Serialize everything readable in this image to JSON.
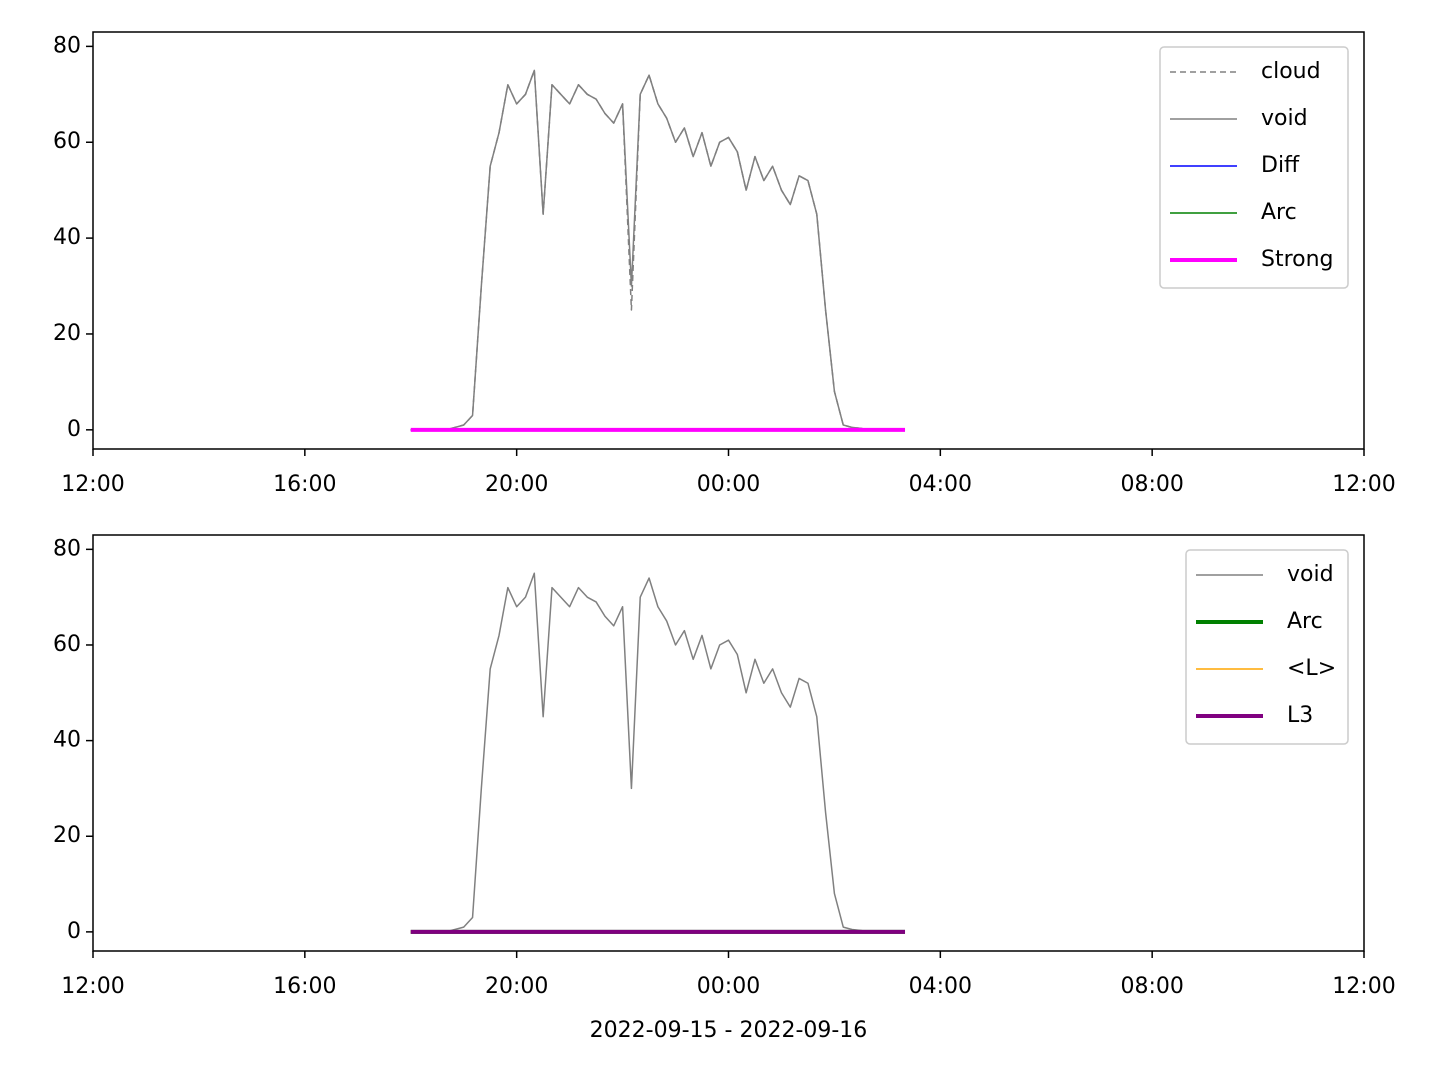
{
  "chart_data": [
    {
      "type": "line",
      "x": [
        6,
        6.167,
        6.333,
        6.5,
        6.667,
        6.833,
        7,
        7.167,
        7.333,
        7.5,
        7.667,
        7.833,
        8,
        8.167,
        8.333,
        8.5,
        8.667,
        8.833,
        9,
        9.167,
        9.333,
        9.5,
        9.667,
        9.833,
        10,
        10.167,
        10.333,
        10.5,
        10.667,
        10.833,
        11,
        11.167,
        11.333,
        11.5,
        11.667,
        11.833,
        12,
        12.167,
        12.333,
        12.5,
        12.667,
        12.833,
        13,
        13.167,
        13.333,
        13.5,
        13.667,
        13.833,
        14,
        14.167,
        14.333,
        14.5,
        14.667,
        14.833,
        15,
        15.167,
        15.333
      ],
      "series": [
        {
          "name": "cloud",
          "color": "#808080",
          "linestyle": "dashed",
          "linewidth": 1.5,
          "values": [
            0,
            0,
            0,
            0,
            0,
            0.5,
            1,
            3,
            30,
            55,
            62,
            72,
            68,
            70,
            75,
            45,
            72,
            70,
            68,
            72,
            70,
            69,
            66,
            64,
            68,
            25,
            70,
            74,
            68,
            65,
            60,
            63,
            57,
            62,
            55,
            60,
            61,
            58,
            50,
            57,
            52,
            55,
            50,
            47,
            53,
            52,
            45,
            25,
            8,
            1,
            0.5,
            0.3,
            0,
            0,
            0,
            0,
            0
          ]
        },
        {
          "name": "void",
          "color": "#808080",
          "linestyle": "solid",
          "linewidth": 1.5,
          "values": [
            0,
            0,
            0,
            0,
            0,
            0.5,
            1,
            3,
            30,
            55,
            62,
            72,
            68,
            70,
            75,
            45,
            72,
            70,
            68,
            72,
            70,
            69,
            66,
            64,
            68,
            30,
            70,
            74,
            68,
            65,
            60,
            63,
            57,
            62,
            55,
            60,
            61,
            58,
            50,
            57,
            52,
            55,
            50,
            47,
            53,
            52,
            45,
            25,
            8,
            1,
            0.5,
            0.3,
            0,
            0,
            0,
            0,
            0
          ]
        },
        {
          "name": "Diff",
          "color": "#0000ff",
          "linestyle": "solid",
          "linewidth": 1.5,
          "values": [
            0,
            0,
            0,
            0,
            0,
            0,
            0,
            0,
            0,
            0,
            0,
            0,
            0,
            0,
            0,
            0,
            0,
            0,
            0,
            0,
            0,
            0,
            0,
            0,
            0,
            0,
            0,
            0,
            0,
            0,
            0,
            0,
            0,
            0,
            0,
            0,
            0,
            0,
            0,
            0,
            0,
            0,
            0,
            0,
            0,
            0,
            0,
            0,
            0,
            0,
            0,
            0,
            0,
            0,
            0,
            0,
            0
          ]
        },
        {
          "name": "Arc",
          "color": "#008000",
          "linestyle": "solid",
          "linewidth": 1.5,
          "values": [
            0,
            0,
            0,
            0,
            0,
            0,
            0,
            0,
            0,
            0,
            0,
            0,
            0,
            0,
            0,
            0,
            0,
            0,
            0,
            0,
            0,
            0,
            0,
            0,
            0,
            0,
            0,
            0,
            0,
            0,
            0,
            0,
            0,
            0,
            0,
            0,
            0,
            0,
            0,
            0,
            0,
            0,
            0,
            0,
            0,
            0,
            0,
            0,
            0,
            0,
            0,
            0,
            0,
            0,
            0,
            0,
            0
          ]
        },
        {
          "name": "Strong",
          "color": "#ff00ff",
          "linestyle": "solid",
          "linewidth": 4,
          "values": [
            0,
            0,
            0,
            0,
            0,
            0,
            0,
            0,
            0,
            0,
            0,
            0,
            0,
            0,
            0,
            0,
            0,
            0,
            0,
            0,
            0,
            0,
            0,
            0,
            0,
            0,
            0,
            0,
            0,
            0,
            0,
            0,
            0,
            0,
            0,
            0,
            0,
            0,
            0,
            0,
            0,
            0,
            0,
            0,
            0,
            0,
            0,
            0,
            0,
            0,
            0,
            0,
            0,
            0,
            0,
            0,
            0
          ]
        }
      ],
      "xlim": [
        0,
        24
      ],
      "xticks": [
        {
          "value": 0,
          "label": "12:00"
        },
        {
          "value": 4,
          "label": "16:00"
        },
        {
          "value": 8,
          "label": "20:00"
        },
        {
          "value": 12,
          "label": "00:00"
        },
        {
          "value": 16,
          "label": "04:00"
        },
        {
          "value": 20,
          "label": "08:00"
        },
        {
          "value": 24,
          "label": "12:00"
        }
      ],
      "ylim": [
        -4,
        83
      ],
      "yticks": [
        0,
        20,
        40,
        60,
        80
      ],
      "legend": "upper right"
    },
    {
      "type": "line",
      "x": [
        6,
        6.167,
        6.333,
        6.5,
        6.667,
        6.833,
        7,
        7.167,
        7.333,
        7.5,
        7.667,
        7.833,
        8,
        8.167,
        8.333,
        8.5,
        8.667,
        8.833,
        9,
        9.167,
        9.333,
        9.5,
        9.667,
        9.833,
        10,
        10.167,
        10.333,
        10.5,
        10.667,
        10.833,
        11,
        11.167,
        11.333,
        11.5,
        11.667,
        11.833,
        12,
        12.167,
        12.333,
        12.5,
        12.667,
        12.833,
        13,
        13.167,
        13.333,
        13.5,
        13.667,
        13.833,
        14,
        14.167,
        14.333,
        14.5,
        14.667,
        14.833,
        15,
        15.167,
        15.333
      ],
      "series": [
        {
          "name": "void",
          "color": "#808080",
          "linestyle": "solid",
          "linewidth": 1.5,
          "values": [
            0,
            0,
            0,
            0,
            0,
            0.5,
            1,
            3,
            30,
            55,
            62,
            72,
            68,
            70,
            75,
            45,
            72,
            70,
            68,
            72,
            70,
            69,
            66,
            64,
            68,
            30,
            70,
            74,
            68,
            65,
            60,
            63,
            57,
            62,
            55,
            60,
            61,
            58,
            50,
            57,
            52,
            55,
            50,
            47,
            53,
            52,
            45,
            25,
            8,
            1,
            0.5,
            0.3,
            0,
            0,
            0,
            0,
            0
          ]
        },
        {
          "name": "Arc",
          "color": "#008000",
          "linestyle": "solid",
          "linewidth": 4,
          "values": [
            0,
            0,
            0,
            0,
            0,
            0,
            0,
            0,
            0,
            0,
            0,
            0,
            0,
            0,
            0,
            0,
            0,
            0,
            0,
            0,
            0,
            0,
            0,
            0,
            0,
            0,
            0,
            0,
            0,
            0,
            0,
            0,
            0,
            0,
            0,
            0,
            0,
            0,
            0,
            0,
            0,
            0,
            0,
            0,
            0,
            0,
            0,
            0,
            0,
            0,
            0,
            0,
            0,
            0,
            0,
            0,
            0
          ]
        },
        {
          "name": "<L>",
          "color": "#ffa500",
          "linestyle": "solid",
          "linewidth": 1.5,
          "values": [
            0,
            0,
            0,
            0,
            0,
            0,
            0,
            0,
            0,
            0,
            0,
            0,
            0,
            0,
            0,
            0,
            0,
            0,
            0,
            0,
            0,
            0,
            0,
            0,
            0,
            0,
            0,
            0,
            0,
            0,
            0,
            0,
            0,
            0,
            0,
            0,
            0,
            0,
            0,
            0,
            0,
            0,
            0,
            0,
            0,
            0,
            0,
            0,
            0,
            0,
            0,
            0,
            0,
            0,
            0,
            0,
            0
          ]
        },
        {
          "name": "L3",
          "color": "#800080",
          "linestyle": "solid",
          "linewidth": 4,
          "values": [
            0,
            0,
            0,
            0,
            0,
            0,
            0,
            0,
            0,
            0,
            0,
            0,
            0,
            0,
            0,
            0,
            0,
            0,
            0,
            0,
            0,
            0,
            0,
            0,
            0,
            0,
            0,
            0,
            0,
            0,
            0,
            0,
            0,
            0,
            0,
            0,
            0,
            0,
            0,
            0,
            0,
            0,
            0,
            0,
            0,
            0,
            0,
            0,
            0,
            0,
            0,
            0,
            0,
            0,
            0,
            0,
            0
          ]
        }
      ],
      "xlim": [
        0,
        24
      ],
      "xticks": [
        {
          "value": 0,
          "label": "12:00"
        },
        {
          "value": 4,
          "label": "16:00"
        },
        {
          "value": 8,
          "label": "20:00"
        },
        {
          "value": 12,
          "label": "00:00"
        },
        {
          "value": 16,
          "label": "04:00"
        },
        {
          "value": 20,
          "label": "08:00"
        },
        {
          "value": 24,
          "label": "12:00"
        }
      ],
      "ylim": [
        -4,
        83
      ],
      "yticks": [
        0,
        20,
        40,
        60,
        80
      ],
      "legend": "upper right",
      "xlabel": "2022-09-15 - 2022-09-16"
    }
  ]
}
